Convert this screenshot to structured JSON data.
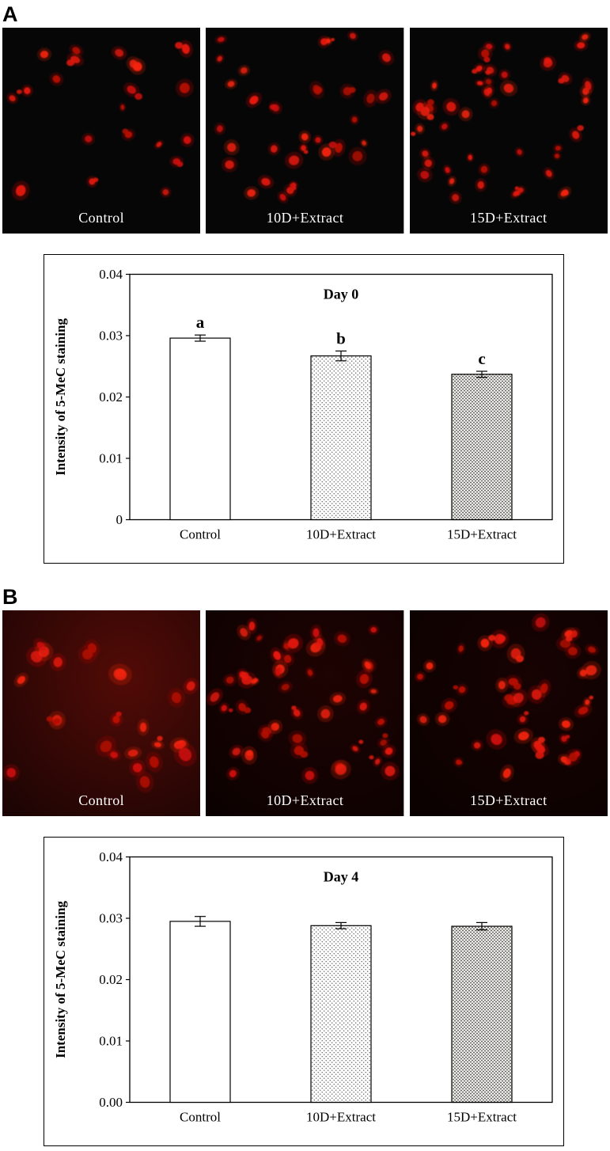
{
  "figure": {
    "panels": [
      {
        "label": "A",
        "micrographs": [
          {
            "label": "Control",
            "dot_count": 21,
            "seed": 11,
            "dot_min": 3.0,
            "dot_max": 6.5,
            "bg": "#060606",
            "haze": 0
          },
          {
            "label": "10D+Extract",
            "dot_count": 32,
            "seed": 22,
            "dot_min": 3.0,
            "dot_max": 6.5,
            "bg": "#060606",
            "haze": 0
          },
          {
            "label": "15D+Extract",
            "dot_count": 44,
            "seed": 33,
            "dot_min": 3.0,
            "dot_max": 6.0,
            "bg": "#060606",
            "haze": 0
          }
        ]
      },
      {
        "label": "B",
        "micrographs": [
          {
            "label": "Control",
            "dot_count": 24,
            "seed": 44,
            "dot_min": 4.5,
            "dot_max": 8.0,
            "bg": "#170404",
            "haze": 0.5
          },
          {
            "label": "10D+Extract",
            "dot_count": 48,
            "seed": 55,
            "dot_min": 3.5,
            "dot_max": 7.0,
            "bg": "#0a0101",
            "haze": 0.15
          },
          {
            "label": "15D+Extract",
            "dot_count": 40,
            "seed": 66,
            "dot_min": 3.5,
            "dot_max": 7.0,
            "bg": "#0a0101",
            "haze": 0.1
          }
        ]
      }
    ],
    "dot_colors": [
      "#b50d05",
      "#d01208",
      "#e5170b",
      "#f2220f"
    ]
  },
  "chart_data": [
    {
      "type": "bar",
      "title": "Day 0",
      "categories": [
        "Control",
        "10D+Extract",
        "15D+Extract"
      ],
      "values": [
        0.0296,
        0.0267,
        0.0237
      ],
      "errors": [
        0.0005,
        0.0008,
        0.0005
      ],
      "bar_labels": [
        "a",
        "b",
        "c"
      ],
      "bar_styles": [
        "solid-white",
        "dots-light",
        "dots-dense"
      ],
      "xlabel": "",
      "ylabel": "Intensity of 5-MeC staining",
      "ylim": [
        0,
        0.04
      ],
      "yticks": [
        "0",
        "0.01",
        "0.02",
        "0.03",
        "0.04"
      ],
      "grid": false,
      "legend": "none"
    },
    {
      "type": "bar",
      "title": "Day 4",
      "categories": [
        "Control",
        "10D+Extract",
        "15D+Extract"
      ],
      "values": [
        0.0295,
        0.0288,
        0.0287
      ],
      "errors": [
        0.0008,
        0.0005,
        0.0006
      ],
      "bar_labels": [
        "",
        "",
        ""
      ],
      "bar_styles": [
        "solid-white",
        "dots-light",
        "dots-dense"
      ],
      "xlabel": "",
      "ylabel": "Intensity of 5-MeC staining",
      "ylim": [
        0,
        0.04
      ],
      "yticks": [
        "0.00",
        "0.01",
        "0.02",
        "0.03",
        "0.04"
      ],
      "grid": false,
      "legend": "none"
    }
  ]
}
